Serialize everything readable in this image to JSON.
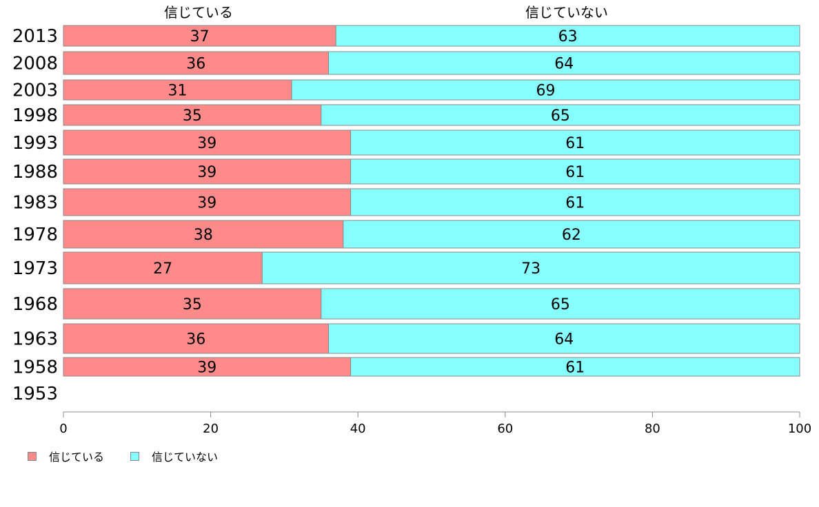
{
  "chart_data": {
    "type": "bar",
    "orientation": "horizontal",
    "stacked": true,
    "categories": [
      "2013",
      "2008",
      "2003",
      "1998",
      "1993",
      "1988",
      "1983",
      "1978",
      "1973",
      "1968",
      "1963",
      "1958",
      "1953"
    ],
    "series": [
      {
        "name": "信じている",
        "color": "#ff8a8a",
        "values": [
          37,
          36,
          31,
          35,
          39,
          39,
          39,
          38,
          27,
          35,
          36,
          39,
          null
        ]
      },
      {
        "name": "信じていない",
        "color": "#88ffff",
        "values": [
          63,
          64,
          69,
          65,
          61,
          61,
          61,
          62,
          73,
          65,
          64,
          61,
          null
        ]
      }
    ],
    "column_headers": [
      "信じている",
      "信じていない"
    ],
    "xlim": [
      0,
      100
    ],
    "xticks": [
      0,
      20,
      40,
      60,
      80,
      100
    ],
    "grid": false,
    "legend_position": "bottom-left"
  }
}
